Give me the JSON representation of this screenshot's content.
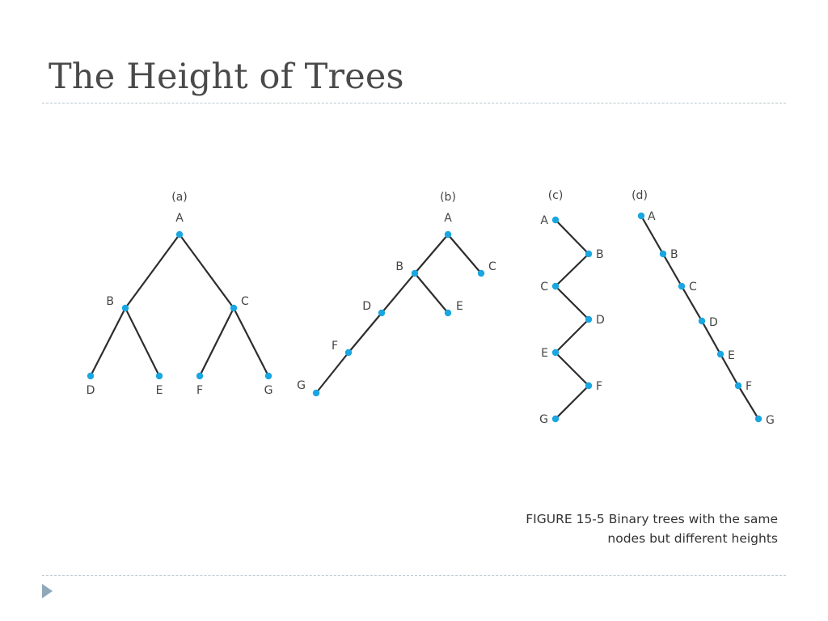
{
  "slide": {
    "title": "The Height of Trees"
  },
  "figure": {
    "caption_line1": "FIGURE 15-5 Binary trees with the same",
    "caption_line2": "nodes but different heights"
  },
  "trees": [
    {
      "id": "a",
      "label": "(a)",
      "nodes": [
        "A",
        "B",
        "C",
        "D",
        "E",
        "F",
        "G"
      ],
      "edges": [
        [
          "A",
          "B"
        ],
        [
          "A",
          "C"
        ],
        [
          "B",
          "D"
        ],
        [
          "B",
          "E"
        ],
        [
          "C",
          "F"
        ],
        [
          "C",
          "G"
        ]
      ]
    },
    {
      "id": "b",
      "label": "(b)",
      "nodes": [
        "A",
        "B",
        "C",
        "D",
        "E",
        "F",
        "G"
      ],
      "edges": [
        [
          "A",
          "B"
        ],
        [
          "A",
          "C"
        ],
        [
          "B",
          "D"
        ],
        [
          "B",
          "E"
        ],
        [
          "D",
          "F"
        ],
        [
          "F",
          "G"
        ]
      ]
    },
    {
      "id": "c",
      "label": "(c)",
      "nodes": [
        "A",
        "B",
        "C",
        "D",
        "E",
        "F",
        "G"
      ],
      "edges": [
        [
          "A",
          "B"
        ],
        [
          "B",
          "C"
        ],
        [
          "C",
          "D"
        ],
        [
          "D",
          "E"
        ],
        [
          "E",
          "F"
        ],
        [
          "F",
          "G"
        ]
      ]
    },
    {
      "id": "d",
      "label": "(d)",
      "nodes": [
        "A",
        "B",
        "C",
        "D",
        "E",
        "F",
        "G"
      ],
      "edges": [
        [
          "A",
          "B"
        ],
        [
          "B",
          "C"
        ],
        [
          "C",
          "D"
        ],
        [
          "D",
          "E"
        ],
        [
          "E",
          "F"
        ],
        [
          "F",
          "G"
        ]
      ]
    }
  ],
  "colors": {
    "node": "#1aa6e0",
    "edge": "#2d2d2d",
    "accent": "#8fa9bb"
  }
}
